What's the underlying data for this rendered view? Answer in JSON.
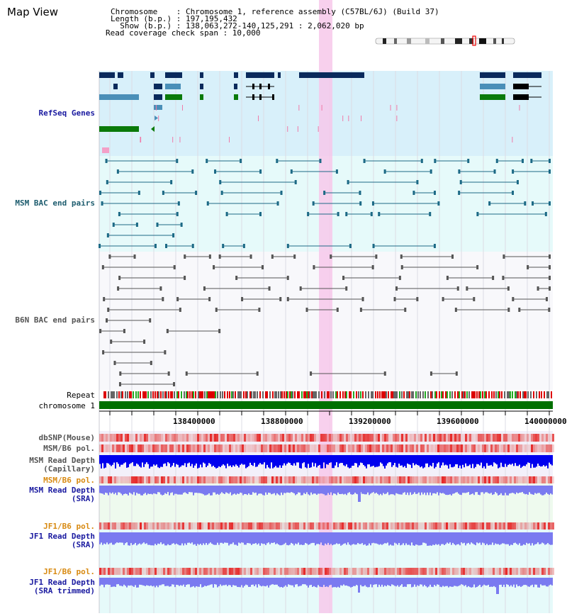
{
  "header": {
    "title": "Map View",
    "chromosome_line": "Chromosome    : Chromosome 1, reference assembly (C57BL/6J) (Build 37)",
    "length_line": "Length (b.p.) : 197,195,432",
    "show_line": "  Show (b.p.) : 138,063,272-140,125,291 : 2,062,020 bp",
    "coverage_line": "Read coverage check span : 10,000"
  },
  "tracks": {
    "refseq": "RefSeq Genes",
    "msm_bac": "MSM BAC end pairs",
    "b6n_bac": "B6N BAC end pairs",
    "repeat": "Repeat",
    "chromosome": "chromosome 1",
    "dbsnp": "dbSNP(Mouse)",
    "msm_b6_pol": "MSM/B6 pol.",
    "msm_depth_cap_1": "MSM Read Depth",
    "msm_depth_cap_2": "(Capillary)",
    "msm_b6_pol_sra": "MSM/B6 pol.",
    "msm_depth_sra_1": "MSM Read Depth",
    "msm_depth_sra_2": "(SRA)",
    "jf1_b6_pol": "JF1/B6 pol.",
    "jf1_depth_sra_1": "JF1 Read Depth",
    "jf1_depth_sra_2": "(SRA)",
    "jf1_b6_pol_trim": "JF1/B6 pol.",
    "jf1_depth_trim_1": "JF1 Read Depth",
    "jf1_depth_trim_2": "(SRA trimmed)"
  },
  "axis": {
    "ticks": [
      "138400000",
      "138800000",
      "139200000",
      "139600000",
      "140000000"
    ]
  },
  "colors": {
    "refseq_bg": "#d8f0fa",
    "bac_bg": "#e6fafa",
    "highlight": "#f7c8ea",
    "navy": "#0a2a5c",
    "steel": "#4a8fb8",
    "green": "#0a7a0a",
    "teal": "#1d6a86",
    "chrom_green": "#007000",
    "depth_blue": "#0000ee",
    "sra_blue": "#7a7af0"
  }
}
